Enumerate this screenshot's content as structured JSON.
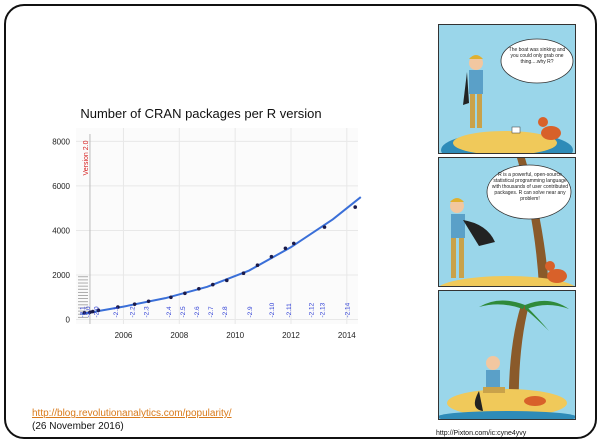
{
  "chart_data": {
    "type": "scatter",
    "title": "Number of CRAN packages per R version",
    "x_ticks": [
      2006,
      2008,
      2010,
      2012,
      2014
    ],
    "y_ticks": [
      0,
      2000,
      4000,
      6000,
      8000
    ],
    "xlim": [
      2004.3,
      2014.4
    ],
    "ylim": [
      -200,
      8600
    ],
    "grid": true,
    "vline": {
      "x": 2004.8,
      "label": "Version 2.0"
    },
    "points": [
      {
        "x": 2004.6,
        "y": 300
      },
      {
        "x": 2004.8,
        "y": 330
      },
      {
        "x": 2004.9,
        "y": 360
      },
      {
        "x": 2005.1,
        "y": 420
      },
      {
        "x": 2005.8,
        "y": 560
      },
      {
        "x": 2006.4,
        "y": 690
      },
      {
        "x": 2006.9,
        "y": 820
      },
      {
        "x": 2007.7,
        "y": 1000
      },
      {
        "x": 2008.2,
        "y": 1180
      },
      {
        "x": 2008.7,
        "y": 1380
      },
      {
        "x": 2009.2,
        "y": 1570
      },
      {
        "x": 2009.7,
        "y": 1760
      },
      {
        "x": 2010.3,
        "y": 2080
      },
      {
        "x": 2010.8,
        "y": 2440
      },
      {
        "x": 2011.3,
        "y": 2820
      },
      {
        "x": 2011.8,
        "y": 3200
      },
      {
        "x": 2012.1,
        "y": 3420
      },
      {
        "x": 2013.2,
        "y": 4150
      },
      {
        "x": 2014.3,
        "y": 5050
      }
    ],
    "trend": [
      {
        "x": 2004.5,
        "y": 250
      },
      {
        "x": 2006,
        "y": 580
      },
      {
        "x": 2007.5,
        "y": 960
      },
      {
        "x": 2009,
        "y": 1470
      },
      {
        "x": 2010.5,
        "y": 2200
      },
      {
        "x": 2012,
        "y": 3250
      },
      {
        "x": 2013.5,
        "y": 4500
      },
      {
        "x": 2014.5,
        "y": 5500
      }
    ],
    "version_labels": [
      {
        "x": 2004.6,
        "label": "2.1"
      },
      {
        "x": 2004.8,
        "label": "2.0"
      },
      {
        "x": 2005.1,
        "label": "2.0"
      },
      {
        "x": 2005.8,
        "label": "2.1"
      },
      {
        "x": 2006.4,
        "label": "2.2"
      },
      {
        "x": 2006.9,
        "label": "2.3"
      },
      {
        "x": 2007.7,
        "label": "2.4"
      },
      {
        "x": 2008.2,
        "label": "2.5"
      },
      {
        "x": 2008.7,
        "label": "2.6"
      },
      {
        "x": 2009.2,
        "label": "2.7"
      },
      {
        "x": 2009.7,
        "label": "2.8"
      },
      {
        "x": 2010.6,
        "label": "2.9"
      },
      {
        "x": 2011.4,
        "label": "2.10"
      },
      {
        "x": 2012.0,
        "label": "2.11"
      },
      {
        "x": 2012.8,
        "label": "2.12"
      },
      {
        "x": 2013.2,
        "label": "2.13"
      },
      {
        "x": 2014.1,
        "label": "2.14"
      },
      {
        "x": 2014.9,
        "label": "2.15"
      }
    ],
    "colors": {
      "points": "#1a1a4a",
      "trend": "#3a6fd8",
      "vline_label": "#d62020",
      "labels": "#2f3fd6",
      "grid": "#e8e8e8"
    }
  },
  "source": {
    "link": "http://blog.revolutionanalytics.com/popularity/",
    "date": "(26 November 2016)"
  },
  "comic": {
    "panel1_text": "The boat was sinking and you could only grab one thing....why R?",
    "panel2_text": "R is a powerful, open-source statistical programming language with thousands of user contributed packages. R can solve near any problem!",
    "credit": "http://Pixton.com/ic:cyne4yvy"
  }
}
